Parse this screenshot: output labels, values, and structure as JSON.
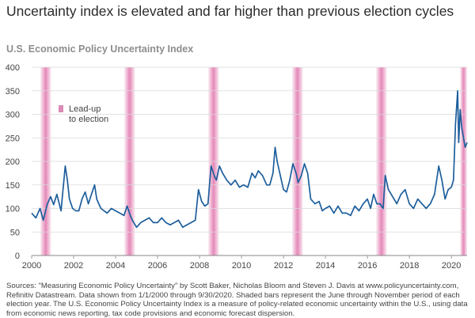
{
  "header": {
    "title": "Uncertainty index is elevated and far higher than previous election cycles",
    "subtitle": "U.S. Economic Policy Uncertainty Index"
  },
  "footer": {
    "source": "Sources: \"Measuring Economic Policy Uncertainty\" by Scott Baker, Nicholas Bloom and Steven J. Davis at www.policyuncertainty.com, Refinitiv Datastream. Data shown from 1/1/2000 through 9/30/2020. Shaded bars represent the June through November period of each election year. The U.S. Economic Policy Uncertainty Index is a measure of policy-related economic uncertainty within the U.S., using data from economic news reporting, tax code provisions and economic forecast dispersion."
  },
  "colors": {
    "line": "#1d5e9c",
    "shade": "#e27bb0",
    "legend": "#d98ab5",
    "grid": "#d9d9d9",
    "axis": "#888888"
  },
  "chart_data": {
    "type": "line",
    "title": "Uncertainty index is elevated and far higher than previous election cycles",
    "subtitle": "U.S. Economic Policy Uncertainty Index",
    "xlabel": "",
    "ylabel": "",
    "xlim": [
      2000,
      2020.75
    ],
    "ylim": [
      0,
      400
    ],
    "yticks": [
      "0",
      "50",
      "100",
      "150",
      "200",
      "250",
      "300",
      "350",
      "400"
    ],
    "xticks": [
      "2000",
      "2002",
      "2004",
      "2006",
      "2008",
      "2010",
      "2012",
      "2014",
      "2016",
      "2018",
      "2020"
    ],
    "grid": "horizontal",
    "legend": {
      "position": "top-left",
      "label": "Lead-up to election",
      "lines": [
        "Lead-up",
        "to election"
      ]
    },
    "shaded_periods": [
      [
        2000.42,
        2000.92
      ],
      [
        2004.42,
        2004.92
      ],
      [
        2008.42,
        2008.92
      ],
      [
        2012.42,
        2012.92
      ],
      [
        2016.42,
        2016.92
      ],
      [
        2020.42,
        2020.75
      ]
    ],
    "x": [
      2000.0,
      2000.2,
      2000.4,
      2000.55,
      2000.75,
      2000.9,
      2001.05,
      2001.2,
      2001.4,
      2001.6,
      2001.7,
      2001.8,
      2001.95,
      2002.1,
      2002.25,
      2002.4,
      2002.55,
      2002.7,
      2002.85,
      2003.0,
      2003.1,
      2003.2,
      2003.3,
      2003.45,
      2003.6,
      2003.8,
      2004.0,
      2004.2,
      2004.4,
      2004.55,
      2004.7,
      2004.8,
      2005.0,
      2005.2,
      2005.4,
      2005.6,
      2005.8,
      2006.0,
      2006.2,
      2006.4,
      2006.6,
      2006.8,
      2007.0,
      2007.2,
      2007.4,
      2007.6,
      2007.8,
      2007.95,
      2008.1,
      2008.25,
      2008.4,
      2008.55,
      2008.7,
      2008.8,
      2008.95,
      2009.1,
      2009.3,
      2009.5,
      2009.7,
      2009.9,
      2010.1,
      2010.3,
      2010.5,
      2010.65,
      2010.8,
      2011.0,
      2011.2,
      2011.35,
      2011.5,
      2011.6,
      2011.7,
      2011.85,
      2012.0,
      2012.15,
      2012.3,
      2012.45,
      2012.6,
      2012.7,
      2012.85,
      2013.0,
      2013.15,
      2013.3,
      2013.5,
      2013.7,
      2013.85,
      2014.0,
      2014.2,
      2014.4,
      2014.6,
      2014.8,
      2015.0,
      2015.2,
      2015.4,
      2015.6,
      2015.8,
      2016.0,
      2016.15,
      2016.3,
      2016.45,
      2016.6,
      2016.75,
      2016.85,
      2017.0,
      2017.2,
      2017.4,
      2017.6,
      2017.8,
      2018.0,
      2018.2,
      2018.4,
      2018.6,
      2018.8,
      2019.0,
      2019.2,
      2019.4,
      2019.55,
      2019.7,
      2019.85,
      2020.0,
      2020.1,
      2020.2,
      2020.3,
      2020.35,
      2020.42,
      2020.5,
      2020.58,
      2020.66,
      2020.75
    ],
    "values": [
      90,
      80,
      100,
      75,
      110,
      125,
      108,
      130,
      95,
      190,
      160,
      120,
      100,
      95,
      95,
      120,
      135,
      110,
      130,
      150,
      120,
      110,
      100,
      95,
      90,
      100,
      95,
      90,
      85,
      105,
      85,
      75,
      60,
      70,
      75,
      80,
      70,
      70,
      80,
      70,
      65,
      70,
      75,
      60,
      65,
      70,
      75,
      140,
      115,
      105,
      110,
      190,
      170,
      160,
      190,
      175,
      160,
      150,
      160,
      145,
      150,
      145,
      175,
      165,
      180,
      170,
      150,
      150,
      175,
      230,
      200,
      170,
      140,
      135,
      160,
      195,
      175,
      155,
      170,
      195,
      175,
      120,
      110,
      115,
      95,
      100,
      105,
      90,
      105,
      90,
      90,
      85,
      105,
      95,
      110,
      120,
      100,
      130,
      110,
      110,
      100,
      170,
      140,
      125,
      110,
      130,
      140,
      110,
      100,
      120,
      110,
      100,
      110,
      130,
      190,
      160,
      120,
      140,
      145,
      160,
      280,
      350,
      240,
      310,
      270,
      250,
      230,
      240
    ]
  }
}
